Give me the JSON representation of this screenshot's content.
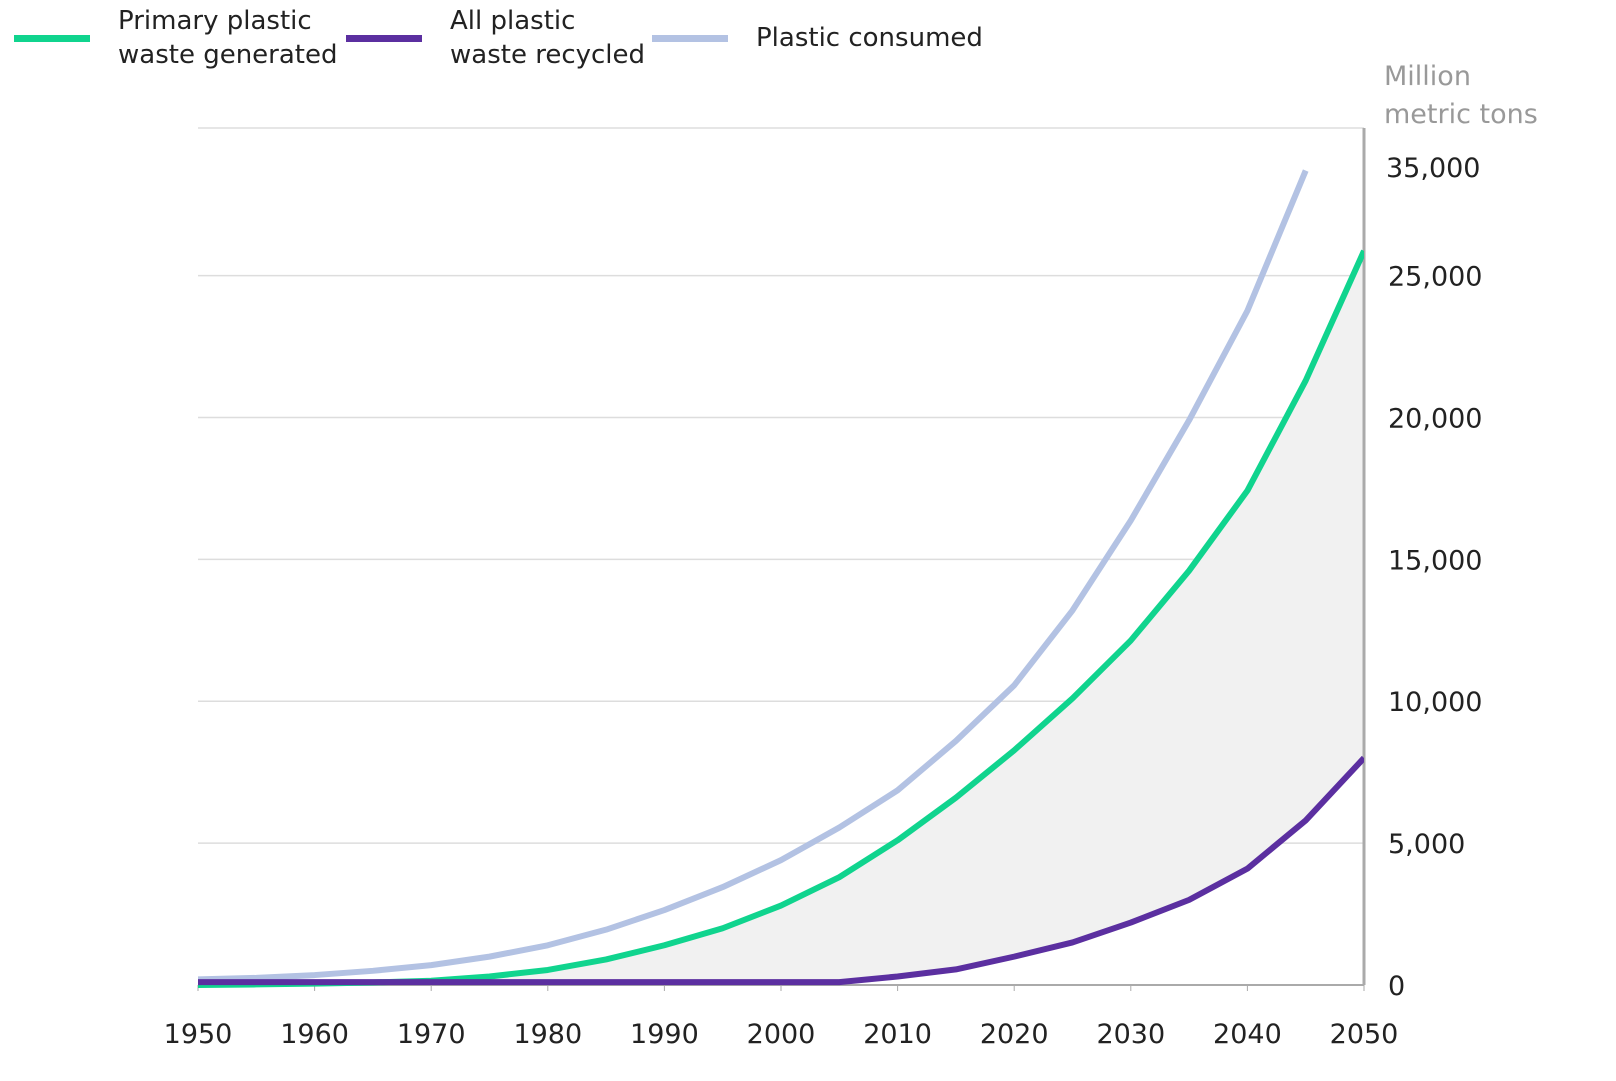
{
  "chart_data": {
    "type": "line",
    "y_label": "Million metric tons",
    "y_top_label": "35,000",
    "x": [
      1950,
      1955,
      1960,
      1965,
      1970,
      1975,
      1980,
      1985,
      1990,
      1995,
      2000,
      2005,
      2010,
      2015,
      2020,
      2025,
      2030,
      2035,
      2040,
      2045,
      2050
    ],
    "series": [
      {
        "name": "Primary plastic waste generated",
        "color": "#10d48e",
        "values": [
          0,
          20,
          50,
          90,
          150,
          300,
          530,
          900,
          1400,
          2000,
          2800,
          3800,
          5100,
          6600,
          8270,
          10100,
          12140,
          14600,
          17420,
          21300,
          25870
        ]
      },
      {
        "name": "All plastic waste recycled",
        "color": "#5b2fa0",
        "values": [
          100,
          100,
          100,
          100,
          100,
          100,
          100,
          100,
          100,
          100,
          100,
          100,
          300,
          550,
          1000,
          1500,
          2200,
          3000,
          4100,
          5800,
          8000
        ]
      },
      {
        "name": "Plastic consumed",
        "color": "#b3c2e3",
        "values": [
          200,
          250,
          350,
          500,
          700,
          1000,
          1400,
          1950,
          2640,
          3450,
          4400,
          5550,
          6860,
          8600,
          10560,
          13200,
          16370,
          19900,
          23760,
          28700,
          null
        ]
      }
    ],
    "xlim": [
      1950,
      2050
    ],
    "xticks": [
      1950,
      1960,
      1970,
      1980,
      1990,
      2000,
      2010,
      2020,
      2030,
      2040,
      2050
    ],
    "ylim": [
      0,
      30200
    ],
    "yticks": [
      0,
      {
        "value": 5000,
        "label": "5,000"
      },
      {
        "value": 10000,
        "label": "10,000"
      },
      {
        "value": 15000,
        "label": "15,000"
      },
      {
        "value": 20000,
        "label": "20,000"
      },
      {
        "value": 25000,
        "label": "25,000"
      }
    ],
    "grid": true
  }
}
